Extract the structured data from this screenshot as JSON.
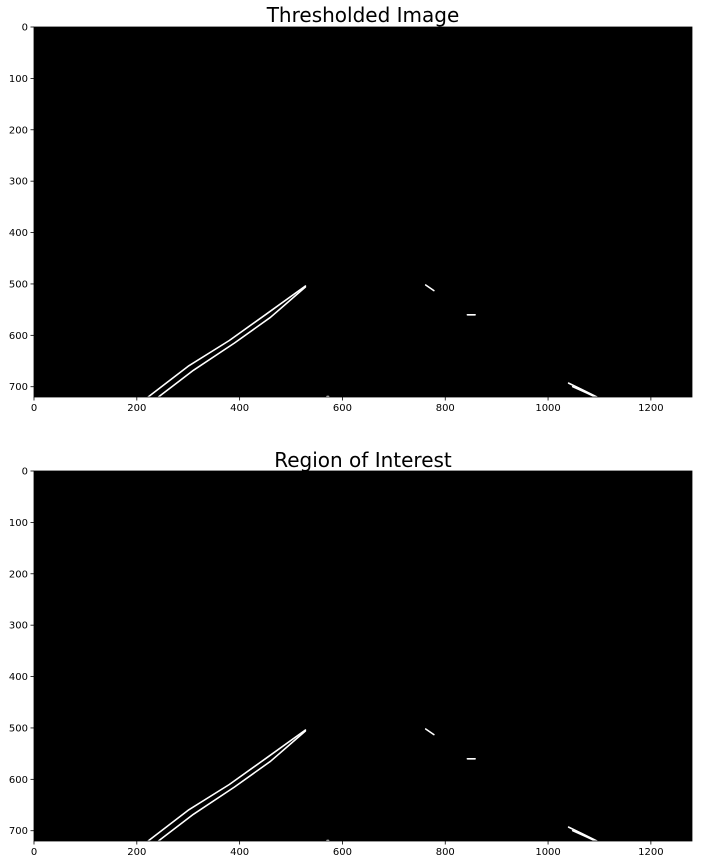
{
  "chart_data": [
    {
      "type": "image",
      "title": "Thresholded Image",
      "xlim": [
        0,
        1280
      ],
      "ylim": [
        720,
        0
      ],
      "xticks": [
        0,
        200,
        400,
        600,
        800,
        1000,
        1200
      ],
      "yticks": [
        0,
        100,
        200,
        300,
        400,
        500,
        600,
        700
      ],
      "background": "#000000",
      "foreground": "#ffffff",
      "features": [
        {
          "points": [
            [
              222,
              720
            ],
            [
              300,
              660
            ],
            [
              380,
              610
            ],
            [
              450,
              560
            ],
            [
              528,
              504
            ]
          ]
        },
        {
          "points": [
            [
              242,
              720
            ],
            [
              310,
              668
            ],
            [
              390,
              615
            ],
            [
              460,
              565
            ],
            [
              528,
              506
            ]
          ]
        },
        {
          "points": [
            [
              762,
              502
            ],
            [
              778,
              513
            ]
          ]
        },
        {
          "points": [
            [
              843,
              560
            ],
            [
              858,
              560
            ]
          ]
        },
        {
          "points": [
            [
              1040,
              693
            ],
            [
              1065,
              705
            ],
            [
              1095,
              720
            ]
          ]
        },
        {
          "points": [
            [
              1048,
              700
            ],
            [
              1075,
              712
            ],
            [
              1092,
              720
            ]
          ]
        },
        {
          "points": [
            [
              570,
              719
            ],
            [
              573,
              719
            ]
          ]
        }
      ]
    },
    {
      "type": "image",
      "title": "Region of Interest",
      "xlim": [
        0,
        1280
      ],
      "ylim": [
        720,
        0
      ],
      "xticks": [
        0,
        200,
        400,
        600,
        800,
        1000,
        1200
      ],
      "yticks": [
        0,
        100,
        200,
        300,
        400,
        500,
        600,
        700
      ],
      "background": "#000000",
      "foreground": "#ffffff",
      "features": [
        {
          "points": [
            [
              222,
              720
            ],
            [
              300,
              660
            ],
            [
              380,
              610
            ],
            [
              450,
              560
            ],
            [
              528,
              504
            ]
          ]
        },
        {
          "points": [
            [
              242,
              720
            ],
            [
              310,
              668
            ],
            [
              390,
              615
            ],
            [
              460,
              565
            ],
            [
              528,
              506
            ]
          ]
        },
        {
          "points": [
            [
              762,
              502
            ],
            [
              778,
              513
            ]
          ]
        },
        {
          "points": [
            [
              843,
              560
            ],
            [
              858,
              560
            ]
          ]
        },
        {
          "points": [
            [
              1040,
              693
            ],
            [
              1065,
              705
            ],
            [
              1095,
              720
            ]
          ]
        },
        {
          "points": [
            [
              1048,
              700
            ],
            [
              1075,
              712
            ],
            [
              1092,
              720
            ]
          ]
        },
        {
          "points": [
            [
              570,
              719
            ],
            [
              573,
              719
            ]
          ]
        }
      ]
    }
  ]
}
